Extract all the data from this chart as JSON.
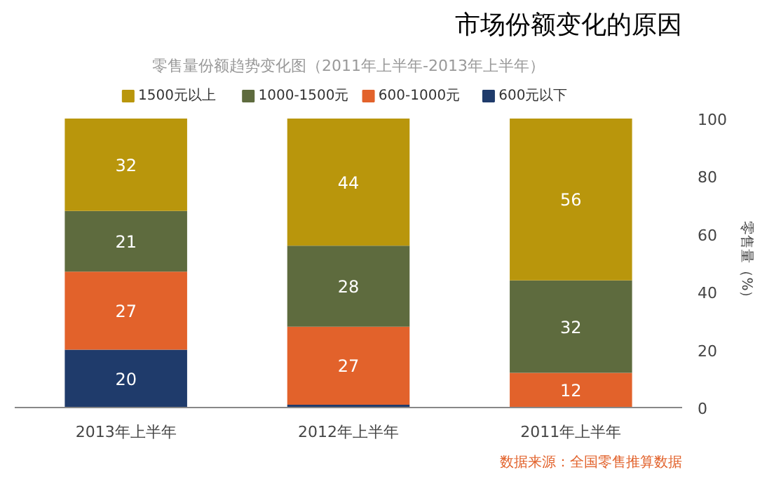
{
  "chart_data": {
    "type": "bar",
    "stacked": true,
    "title": "市场份额变化的原因",
    "subtitle": "零售量份额趋势变化图（2011年上半年-2013年上半年）",
    "ylabel": "零售量（%）",
    "categories": [
      "2013年上半年",
      "2012年上半年",
      "2011年上半年"
    ],
    "series": [
      {
        "name": "600元以下",
        "color": "#1f3b6b",
        "values": [
          20,
          1,
          0
        ],
        "value_labels": [
          "20",
          null,
          null
        ]
      },
      {
        "name": "600-1000元",
        "color": "#e2622b",
        "values": [
          27,
          27,
          12
        ],
        "value_labels": [
          "27",
          "27",
          "12"
        ]
      },
      {
        "name": "1000-1500元",
        "color": "#5e6b3e",
        "values": [
          21,
          28,
          32
        ],
        "value_labels": [
          "21",
          "28",
          "32"
        ]
      },
      {
        "name": "1500元以上",
        "color": "#b9960c",
        "values": [
          32,
          44,
          56
        ],
        "value_labels": [
          "32",
          "44",
          "56"
        ]
      }
    ],
    "ylim": [
      0,
      100
    ],
    "yticks": [
      0,
      20,
      40,
      60,
      80,
      100
    ],
    "grid": false,
    "legend": "top",
    "annotations": [
      "数据来源：全国零售推算数据"
    ]
  }
}
